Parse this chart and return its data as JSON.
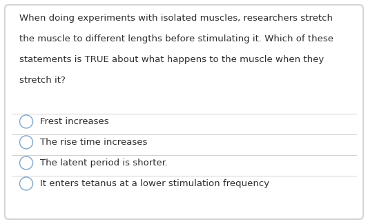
{
  "question_lines": [
    "When doing experiments with isolated muscles, researchers stretch",
    "the muscle to different lengths before stimulating it. Which of these",
    "statements is TRUE about what happens to the muscle when they",
    "stretch it?"
  ],
  "options": [
    "Frest increases",
    "The rise time increases",
    "The latent period is shorter.",
    "It enters tetanus at a lower stimulation frequency"
  ],
  "bg_color": "#ffffff",
  "border_color": "#c0c0c0",
  "text_color": "#2c2c2c",
  "divider_color": "#d0d0d0",
  "circle_edge_color": "#8aabcc",
  "question_fontsize": 9.5,
  "option_fontsize": 9.5,
  "fig_width": 5.33,
  "fig_height": 3.25,
  "dpi": 100
}
